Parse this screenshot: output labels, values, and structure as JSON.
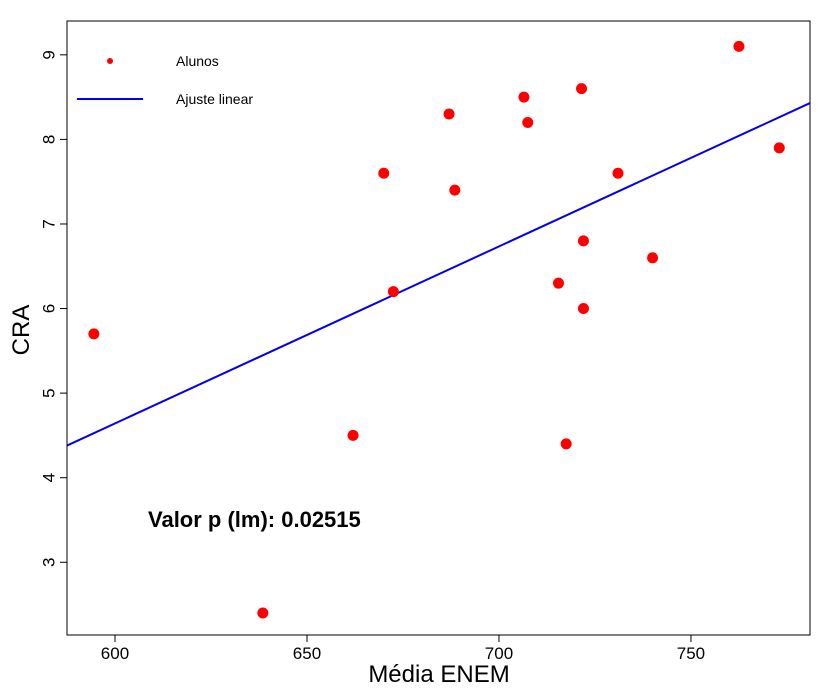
{
  "chart_data": {
    "type": "scatter",
    "title": "",
    "xlabel": "Média ENEM",
    "ylabel": "CRA",
    "xlim": [
      587.5,
      781
    ],
    "ylim": [
      2.14,
      9.4
    ],
    "x_ticks": [
      "600",
      "650",
      "700",
      "750"
    ],
    "y_ticks": [
      "3",
      "4",
      "5",
      "6",
      "7",
      "8",
      "9"
    ],
    "grid": false,
    "legend_position": "top-left",
    "colors": {
      "points": "#ff0000",
      "fit": "#0000ee",
      "axis": "#000000"
    },
    "series": [
      {
        "name": "Alunos",
        "type": "scatter",
        "points": [
          {
            "x": 594.5,
            "y": 5.7
          },
          {
            "x": 638.5,
            "y": 2.4
          },
          {
            "x": 662.0,
            "y": 4.5
          },
          {
            "x": 670.0,
            "y": 7.6
          },
          {
            "x": 672.5,
            "y": 6.2
          },
          {
            "x": 687.0,
            "y": 8.3
          },
          {
            "x": 688.5,
            "y": 7.4
          },
          {
            "x": 706.5,
            "y": 8.5
          },
          {
            "x": 707.5,
            "y": 8.2
          },
          {
            "x": 715.5,
            "y": 6.3
          },
          {
            "x": 717.5,
            "y": 4.4
          },
          {
            "x": 721.5,
            "y": 8.6
          },
          {
            "x": 722.0,
            "y": 6.8
          },
          {
            "x": 722.0,
            "y": 6.0
          },
          {
            "x": 731.0,
            "y": 7.6
          },
          {
            "x": 740.0,
            "y": 6.6
          },
          {
            "x": 762.5,
            "y": 9.1
          },
          {
            "x": 773.0,
            "y": 7.9
          }
        ]
      },
      {
        "name": "Ajuste linear",
        "type": "line",
        "points": [
          {
            "x": 587.5,
            "y": 4.38
          },
          {
            "x": 781.0,
            "y": 8.43
          }
        ]
      }
    ],
    "annotations": [
      "Valor p (lm): 0.02515"
    ]
  }
}
